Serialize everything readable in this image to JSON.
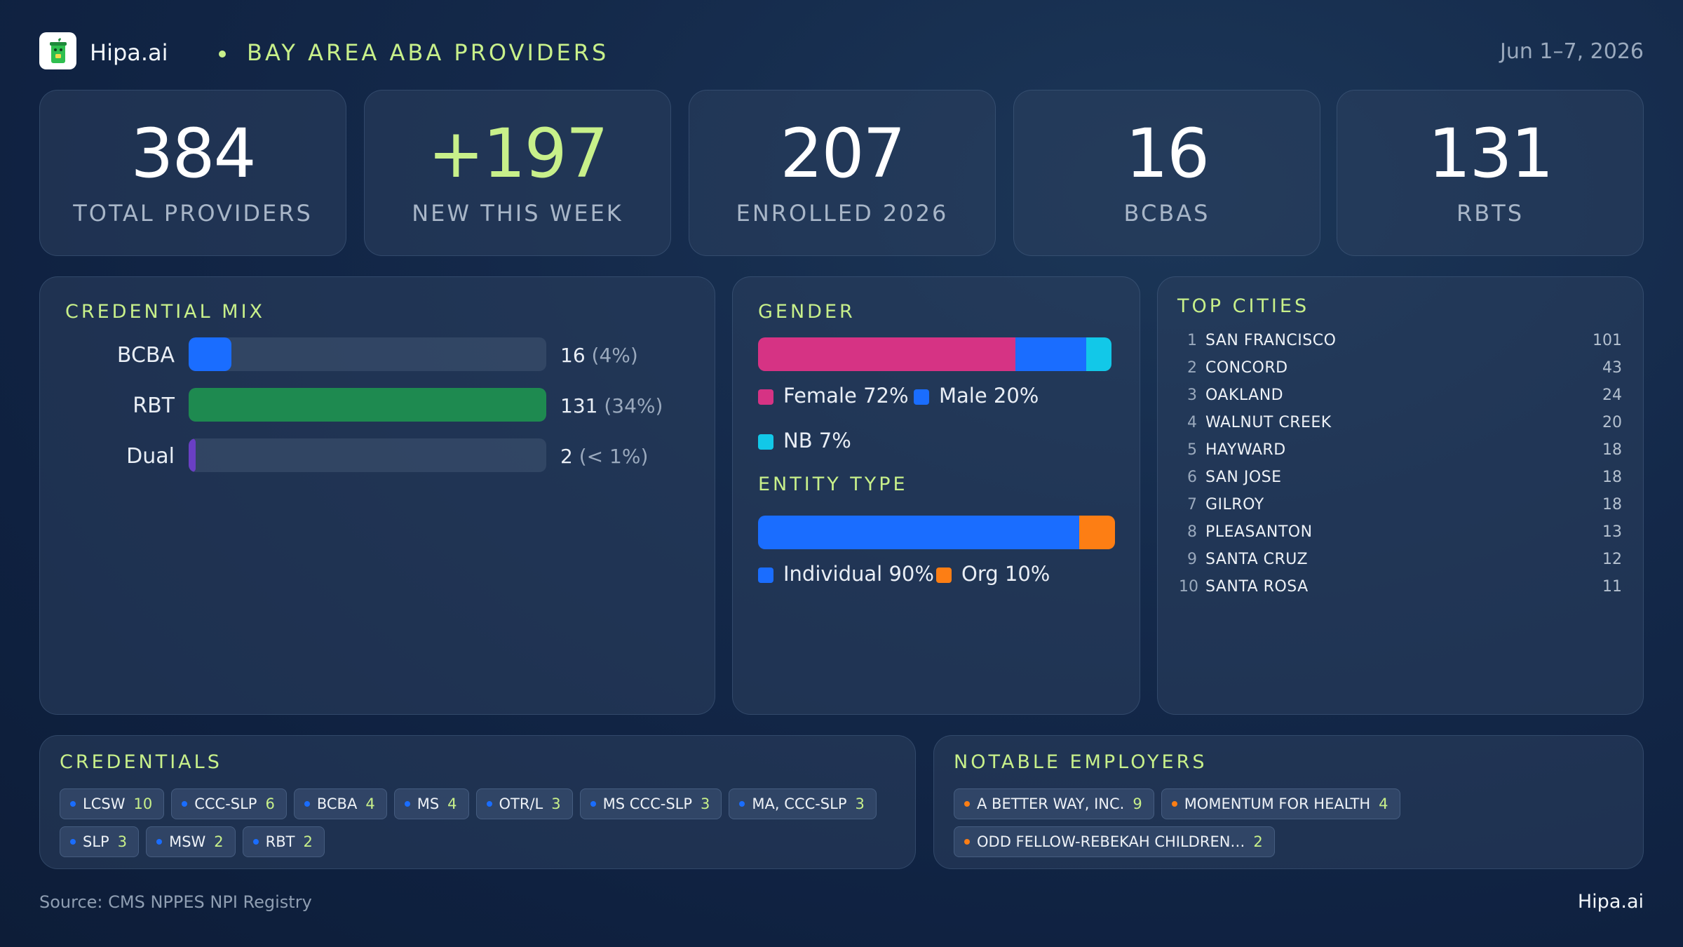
{
  "header": {
    "brand": "Hipa.ai",
    "title": "BAY AREA ABA PROVIDERS",
    "date_range": "Jun 1–7, 2026"
  },
  "stats": [
    {
      "value": "384",
      "label": "TOTAL  PROVIDERS"
    },
    {
      "value": "+197",
      "label": "NEW THIS WEEK"
    },
    {
      "value": "207",
      "label": "ENROLLED 2026"
    },
    {
      "value": "16",
      "label": "BCBAS"
    },
    {
      "value": "131",
      "label": "RBTS"
    }
  ],
  "credential_mix": {
    "title": "CREDENTIAL  MIX",
    "rows": [
      {
        "name": "BCBA",
        "count": "16",
        "pct": "(4%)",
        "share": 0.12,
        "color": "#1a6dff"
      },
      {
        "name": "RBT",
        "count": "131",
        "pct": "(34%)",
        "share": 1.0,
        "color": "#1e8a50"
      },
      {
        "name": "Dual",
        "count": "2",
        "pct": "(< 1%)",
        "share": 0.02,
        "color": "#6a3fc4"
      }
    ]
  },
  "gender": {
    "title": "GENDER",
    "segments": [
      {
        "label": "Female 72%",
        "share": 72,
        "color": "#d63384"
      },
      {
        "label": "Male 20%",
        "share": 20,
        "color": "#1a6dff"
      },
      {
        "label": "NB 7%",
        "share": 7,
        "color": "#12c8e8"
      }
    ]
  },
  "entity_type": {
    "title": "ENTITY  TYPE",
    "segments": [
      {
        "label": "Individual 90%",
        "share": 90,
        "color": "#1a6dff"
      },
      {
        "label": "Org 10%",
        "share": 10,
        "color": "#fd7e14"
      }
    ]
  },
  "top_cities": {
    "title": "TOP  CITIES",
    "rows": [
      {
        "rank": "1",
        "name": "SAN FRANCISCO",
        "count": "101"
      },
      {
        "rank": "2",
        "name": "CONCORD",
        "count": "43"
      },
      {
        "rank": "3",
        "name": "OAKLAND",
        "count": "24"
      },
      {
        "rank": "4",
        "name": "WALNUT CREEK",
        "count": "20"
      },
      {
        "rank": "5",
        "name": "HAYWARD",
        "count": "18"
      },
      {
        "rank": "6",
        "name": "SAN JOSE",
        "count": "18"
      },
      {
        "rank": "7",
        "name": "GILROY",
        "count": "18"
      },
      {
        "rank": "8",
        "name": "PLEASANTON",
        "count": "13"
      },
      {
        "rank": "9",
        "name": "SANTA CRUZ",
        "count": "12"
      },
      {
        "rank": "10",
        "name": "SANTA ROSA",
        "count": "11"
      }
    ]
  },
  "credentials": {
    "title": "CREDENTIALS",
    "dot_color": "#1a6dff",
    "chips": [
      {
        "label": "LCSW",
        "count": "10"
      },
      {
        "label": "CCC-SLP",
        "count": "6"
      },
      {
        "label": "BCBA",
        "count": "4"
      },
      {
        "label": "MS",
        "count": "4"
      },
      {
        "label": "OTR/L",
        "count": "3"
      },
      {
        "label": "MS CCC-SLP",
        "count": "3"
      },
      {
        "label": "MA, CCC-SLP",
        "count": "3"
      },
      {
        "label": "SLP",
        "count": "3"
      },
      {
        "label": "MSW",
        "count": "2"
      },
      {
        "label": "RBT",
        "count": "2"
      }
    ]
  },
  "employers": {
    "title": "NOTABLE  EMPLOYERS",
    "dot_color": "#fd7e14",
    "chips": [
      {
        "label": "A BETTER WAY, INC.",
        "count": "9"
      },
      {
        "label": "MOMENTUM FOR HEALTH",
        "count": "4"
      },
      {
        "label": "ODD FELLOW-REBEKAH CHILDREN…",
        "count": "2"
      }
    ]
  },
  "footer": {
    "source": "Source: CMS NPPES NPI Registry",
    "brand": "Hipa.ai"
  }
}
